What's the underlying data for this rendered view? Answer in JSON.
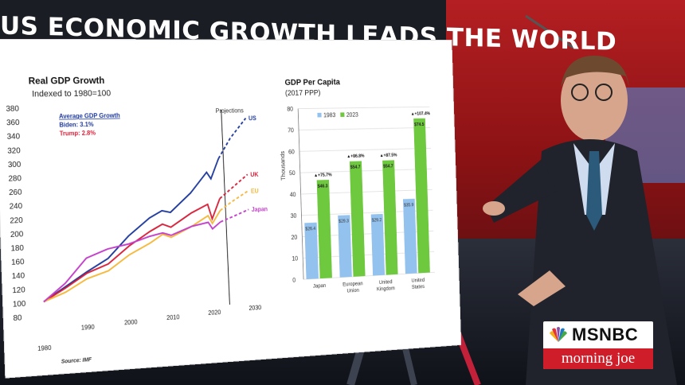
{
  "headline": "US ECONOMIC GROWTH LEADS THE WORLD",
  "left_chart": {
    "title": "Real GDP Growth",
    "subtitle": "Indexed to 1980=100",
    "legend_title": "Average GDP Growth",
    "legend_biden": "Biden: 3.1%",
    "legend_trump": "Trump: 2.8%",
    "projections_label": "Projections",
    "source": "Source: IMF",
    "y_ticks": [
      "380",
      "360",
      "340",
      "320",
      "300",
      "280",
      "260",
      "240",
      "220",
      "200",
      "180",
      "160",
      "140",
      "120",
      "100",
      "80"
    ],
    "x_ticks": [
      "1980",
      "1990",
      "2000",
      "2010",
      "2020",
      "2030"
    ],
    "series_labels": {
      "us": "US",
      "uk": "UK",
      "eu": "EU",
      "japan": "Japan"
    },
    "colors": {
      "us": "#1f3a9c",
      "uk": "#d7213a",
      "eu": "#f5b83b",
      "japan": "#c23fc9"
    }
  },
  "chart_data": [
    {
      "type": "line",
      "title": "Real GDP Growth",
      "subtitle": "Indexed to 1980=100",
      "ylim": [
        80,
        380
      ],
      "xlim": [
        1980,
        2030
      ],
      "series": [
        {
          "name": "US",
          "x": [
            1980,
            1985,
            1990,
            1995,
            2000,
            2005,
            2008,
            2010,
            2015,
            2019,
            2020,
            2022,
            2025,
            2029
          ],
          "values": [
            100,
            120,
            140,
            158,
            190,
            215,
            225,
            222,
            250,
            280,
            270,
            300,
            330,
            360
          ]
        },
        {
          "name": "UK",
          "x": [
            1980,
            1985,
            1990,
            1995,
            2000,
            2005,
            2008,
            2010,
            2015,
            2019,
            2020,
            2022,
            2025,
            2029
          ],
          "values": [
            100,
            118,
            138,
            150,
            175,
            195,
            205,
            200,
            220,
            232,
            210,
            240,
            255,
            275
          ]
        },
        {
          "name": "EU",
          "x": [
            1980,
            1985,
            1990,
            1995,
            2000,
            2005,
            2008,
            2010,
            2015,
            2019,
            2020,
            2022,
            2025,
            2029
          ],
          "values": [
            100,
            112,
            130,
            140,
            162,
            178,
            190,
            185,
            200,
            215,
            203,
            222,
            235,
            250
          ]
        },
        {
          "name": "Japan",
          "x": [
            1980,
            1985,
            1990,
            1995,
            2000,
            2005,
            2008,
            2010,
            2015,
            2019,
            2020,
            2022,
            2025,
            2029
          ],
          "values": [
            100,
            125,
            160,
            172,
            178,
            188,
            192,
            188,
            200,
            205,
            195,
            205,
            212,
            222
          ]
        }
      ]
    },
    {
      "type": "bar",
      "title": "GDP Per Capita",
      "subtitle": "(2017 PPP)",
      "ylabel": "Thousands",
      "ylim": [
        0,
        80
      ],
      "categories": [
        "Japan",
        "European Union",
        "United Kingdom",
        "United States"
      ],
      "series": [
        {
          "name": "1983",
          "values": [
            26.4,
            29.3,
            29.2,
            35.9
          ]
        },
        {
          "name": "2023",
          "values": [
            46.3,
            54.7,
            54.7,
            74.5
          ]
        }
      ],
      "bar_labels_1983": [
        "$26.4",
        "$29.3",
        "$29.2",
        "$35.9"
      ],
      "bar_labels_2023": [
        "$46.3",
        "$54.7",
        "$54.7",
        "$74.5"
      ],
      "growth_labels": [
        "+75.7%",
        "+86.8%",
        "+87.5%",
        "+107.4%"
      ],
      "colors": {
        "1983": "#93c2ee",
        "2023": "#6ec93f"
      }
    }
  ],
  "right_chart": {
    "title": "GDP Per Capita",
    "subtitle": "(2017 PPP)",
    "ylabel": "Thousands",
    "y_ticks": [
      "80",
      "70",
      "60",
      "50",
      "40",
      "30",
      "20",
      "10",
      "0"
    ],
    "legend_1983": "1983",
    "legend_2023": "2023",
    "categories": [
      "Japan",
      "European Union",
      "United Kingdom",
      "United States"
    ]
  },
  "network": {
    "brand": "MSNBC",
    "show": "morning joe"
  }
}
